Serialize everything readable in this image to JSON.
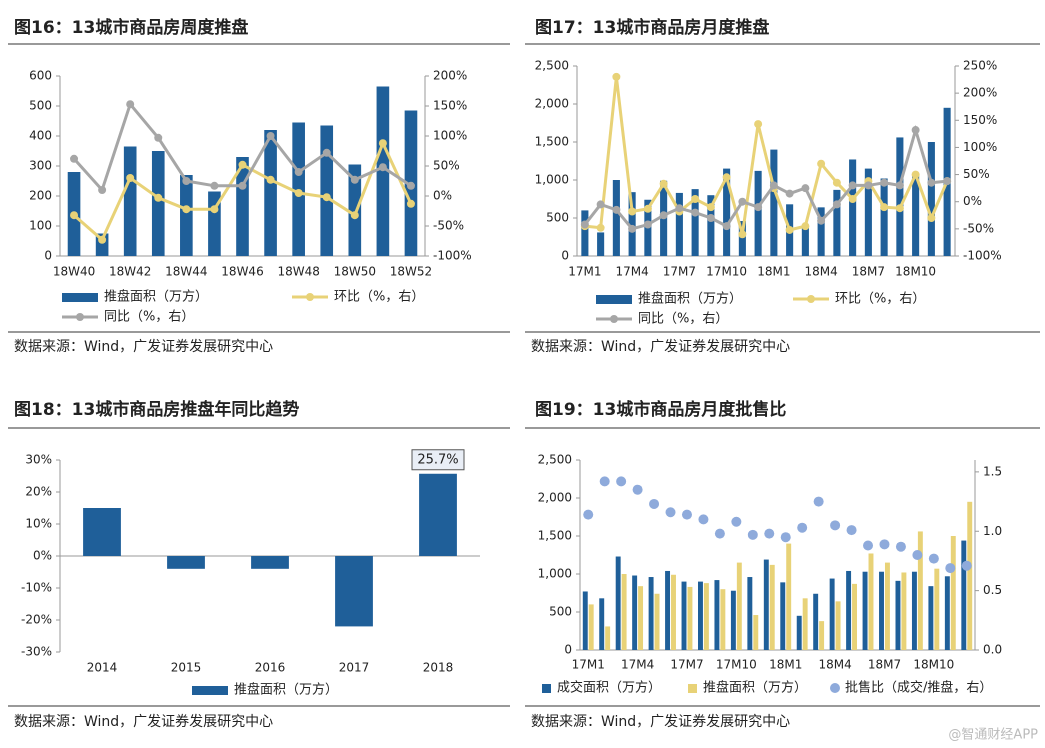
{
  "chart_data": [
    {
      "type": "bar",
      "title": "图16：13城市商品房周度推盘",
      "source": "数据来源：Wind，广发证券发展研究中心",
      "categories": [
        "18W40",
        null,
        "18W42",
        null,
        "18W44",
        null,
        "18W46",
        null,
        "18W48",
        null,
        "18W50",
        null,
        "18W52"
      ],
      "ylim": [
        0,
        600
      ],
      "yticks": [
        0,
        100,
        200,
        300,
        400,
        500,
        600
      ],
      "y2lim": [
        -100,
        200
      ],
      "y2ticks": [
        {
          "value": -100,
          "label": "-100%"
        },
        {
          "value": -50,
          "label": "-50%"
        },
        {
          "value": 0,
          "label": "0%"
        },
        {
          "value": 50,
          "label": "50%"
        },
        {
          "value": 100,
          "label": "100%"
        },
        {
          "value": 150,
          "label": "150%"
        },
        {
          "value": 200,
          "label": "200%"
        }
      ],
      "series": [
        {
          "name": "推盘面积（万方）",
          "type": "bar",
          "color": "#1f5f99",
          "values": [
            280,
            75,
            365,
            350,
            270,
            215,
            330,
            420,
            445,
            435,
            305,
            565,
            485
          ]
        },
        {
          "name": "环比（%，右）",
          "type": "line",
          "axis": "y2",
          "color": "#e8d277",
          "values": [
            -32,
            -73,
            30,
            -3,
            -22,
            -22,
            52,
            27,
            5,
            -2,
            -32,
            88,
            -13
          ]
        },
        {
          "name": "同比（%，右）",
          "type": "line",
          "axis": "y2",
          "color": "#a6a6a6",
          "values": [
            62,
            10,
            153,
            97,
            25,
            17,
            17,
            100,
            40,
            72,
            27,
            48,
            17
          ]
        }
      ]
    },
    {
      "type": "bar",
      "title": "图17：13城市商品房月度推盘",
      "source": "数据来源：Wind，广发证券发展研究中心",
      "categories": [
        "17M1",
        null,
        null,
        "17M4",
        null,
        null,
        "17M7",
        null,
        null,
        "17M10",
        null,
        null,
        "18M1",
        null,
        null,
        "18M4",
        null,
        null,
        "18M7",
        null,
        null,
        "18M10",
        null,
        null
      ],
      "ylim": [
        0,
        2500
      ],
      "yticks": [
        0,
        500,
        {
          "value": 1000,
          "label": "1,000"
        },
        {
          "value": 1500,
          "label": "1,500"
        },
        {
          "value": 2000,
          "label": "2,000"
        },
        {
          "value": 2500,
          "label": "2,500"
        }
      ],
      "y2lim": [
        -100,
        250
      ],
      "y2ticks": [
        {
          "value": -100,
          "label": "-100%"
        },
        {
          "value": -50,
          "label": "-50%"
        },
        {
          "value": 0,
          "label": "0%"
        },
        {
          "value": 50,
          "label": "50%"
        },
        {
          "value": 100,
          "label": "100%"
        },
        {
          "value": 150,
          "label": "150%"
        },
        {
          "value": 200,
          "label": "200%"
        },
        {
          "value": 250,
          "label": "250%"
        }
      ],
      "series": [
        {
          "name": "推盘面积（万方）",
          "type": "bar",
          "color": "#1f5f99",
          "values": [
            600,
            310,
            1000,
            840,
            740,
            990,
            830,
            880,
            800,
            1150,
            460,
            1120,
            1400,
            680,
            380,
            640,
            870,
            1270,
            1150,
            1020,
            1560,
            1070,
            1500,
            1950
          ]
        },
        {
          "name": "环比（%，右）",
          "type": "line",
          "axis": "y2",
          "color": "#e8d277",
          "values": [
            -45,
            -48,
            230,
            -18,
            -13,
            33,
            -18,
            5,
            -10,
            45,
            -60,
            143,
            25,
            -52,
            -45,
            70,
            35,
            5,
            38,
            -10,
            -12,
            50,
            -30,
            38
          ]
        },
        {
          "name": "同比（%，右）",
          "type": "line",
          "axis": "y2",
          "color": "#a6a6a6",
          "values": [
            -42,
            -5,
            -15,
            -50,
            -42,
            -25,
            -12,
            -20,
            -30,
            -45,
            0,
            -10,
            30,
            15,
            25,
            -35,
            -5,
            30,
            30,
            35,
            30,
            132,
            35,
            38
          ]
        }
      ]
    },
    {
      "type": "bar",
      "title": "图18：13城市商品房推盘年同比趋势",
      "source": "数据来源：Wind，广发证券发展研究中心",
      "categories": [
        "2014",
        "2015",
        "2016",
        "2017",
        "2018"
      ],
      "ylim": [
        -30,
        30
      ],
      "yticks": [
        {
          "value": -30,
          "label": "-30%"
        },
        {
          "value": -20,
          "label": "-20%"
        },
        {
          "value": -10,
          "label": "-10%"
        },
        {
          "value": 0,
          "label": "0%"
        },
        {
          "value": 10,
          "label": "10%"
        },
        {
          "value": 20,
          "label": "20%"
        },
        {
          "value": 30,
          "label": "30%"
        }
      ],
      "series": [
        {
          "name": "推盘面积（万方）",
          "type": "bar",
          "color": "#1f5f99",
          "values": [
            15,
            -4,
            -4,
            -22,
            25.7
          ],
          "value_labels": [
            null,
            null,
            null,
            null,
            "25.7%"
          ]
        }
      ]
    },
    {
      "type": "bar",
      "title": "图19：13城市商品房月度批售比",
      "source": "数据来源：Wind，广发证券发展研究中心",
      "categories": [
        "17M1",
        null,
        null,
        "17M4",
        null,
        null,
        "17M7",
        null,
        null,
        "17M10",
        null,
        null,
        "18M1",
        null,
        null,
        "18M4",
        null,
        null,
        "18M7",
        null,
        null,
        "18M10",
        null,
        null
      ],
      "ylim": [
        0,
        2500
      ],
      "yticks": [
        0,
        500,
        {
          "value": 1000,
          "label": "1,000"
        },
        {
          "value": 1500,
          "label": "1,500"
        },
        {
          "value": 2000,
          "label": "2,000"
        },
        {
          "value": 2500,
          "label": "2,500"
        }
      ],
      "y2lim": [
        0,
        1.6
      ],
      "y2ticks": [
        {
          "value": 0,
          "label": "0.0"
        },
        0.5,
        {
          "value": 1,
          "label": "1.0"
        },
        1.5
      ],
      "series": [
        {
          "name": "成交面积（万方）",
          "type": "bar",
          "color": "#1f5f99",
          "values": [
            770,
            680,
            1230,
            980,
            960,
            1040,
            900,
            900,
            920,
            780,
            960,
            1190,
            890,
            450,
            740,
            940,
            1040,
            1030,
            1030,
            910,
            1030,
            840,
            970,
            1440
          ]
        },
        {
          "name": "推盘面积（万方）",
          "type": "bar",
          "color": "#e8d277",
          "values": [
            600,
            310,
            1000,
            840,
            740,
            990,
            830,
            880,
            800,
            1150,
            460,
            1120,
            1400,
            680,
            380,
            640,
            870,
            1270,
            1150,
            1020,
            1560,
            1070,
            1500,
            1950
          ]
        },
        {
          "name": "批售比（成交/推盘，右）",
          "type": "dot",
          "axis": "y2",
          "color": "#8eaadb",
          "values": [
            1.14,
            1.42,
            1.42,
            1.35,
            1.23,
            1.16,
            1.14,
            1.1,
            0.98,
            1.08,
            0.97,
            0.98,
            0.95,
            1.03,
            1.25,
            1.05,
            1.01,
            0.88,
            0.89,
            0.87,
            0.8,
            0.77,
            0.69,
            0.71
          ]
        }
      ]
    }
  ],
  "watermark": "@智通财经APP"
}
